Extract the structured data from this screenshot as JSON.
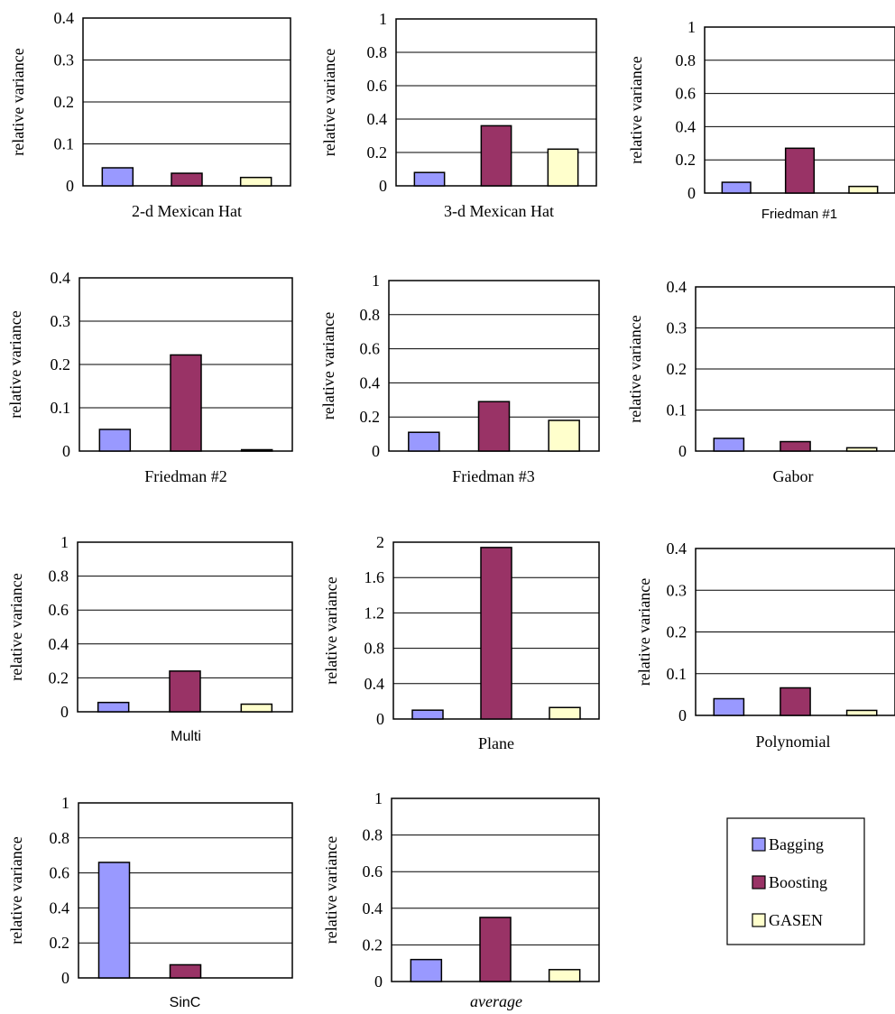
{
  "legend": {
    "items": [
      {
        "label": "Bagging",
        "color": "#9999ff"
      },
      {
        "label": "Boosting",
        "color": "#993366"
      },
      {
        "label": "GASEN",
        "color": "#ffffcc"
      }
    ]
  },
  "chart_data": [
    {
      "type": "bar",
      "title": "2-d Mexican Hat",
      "ylabel": "relative variance",
      "ylim": [
        0,
        0.4
      ],
      "yticks": [
        "0",
        "0.1",
        "0.2",
        "0.3",
        "0.4"
      ],
      "categories": [
        "Bagging",
        "Boosting",
        "GASEN"
      ],
      "values": [
        0.043,
        0.03,
        0.02
      ]
    },
    {
      "type": "bar",
      "title": "3-d Mexican Hat",
      "ylabel": "relative variance",
      "ylim": [
        0,
        1
      ],
      "yticks": [
        "0",
        "0.2",
        "0.4",
        "0.6",
        "0.8",
        "1"
      ],
      "categories": [
        "Bagging",
        "Boosting",
        "GASEN"
      ],
      "values": [
        0.08,
        0.36,
        0.22
      ]
    },
    {
      "type": "bar",
      "title": "Friedman #1",
      "ylabel": "relative variance",
      "ylim": [
        0,
        1
      ],
      "yticks": [
        "0",
        "0.2",
        "0.4",
        "0.6",
        "0.8",
        "1"
      ],
      "categories": [
        "Bagging",
        "Boosting",
        "GASEN"
      ],
      "values": [
        0.065,
        0.27,
        0.04
      ]
    },
    {
      "type": "bar",
      "title": "Friedman #2",
      "ylabel": "relative variance",
      "ylim": [
        0,
        0.4
      ],
      "yticks": [
        "0",
        "0.1",
        "0.2",
        "0.3",
        "0.4"
      ],
      "categories": [
        "Bagging",
        "Boosting",
        "GASEN"
      ],
      "values": [
        0.05,
        0.222,
        0.003
      ]
    },
    {
      "type": "bar",
      "title": "Friedman #3",
      "ylabel": "relative variance",
      "ylim": [
        0,
        1
      ],
      "yticks": [
        "0",
        "0.2",
        "0.4",
        "0.6",
        "0.8",
        "1"
      ],
      "categories": [
        "Bagging",
        "Boosting",
        "GASEN"
      ],
      "values": [
        0.11,
        0.29,
        0.18
      ]
    },
    {
      "type": "bar",
      "title": "Gabor",
      "ylabel": "relative variance",
      "ylim": [
        0,
        0.4
      ],
      "yticks": [
        "0",
        "0.1",
        "0.2",
        "0.3",
        "0.4"
      ],
      "categories": [
        "Bagging",
        "Boosting",
        "GASEN"
      ],
      "values": [
        0.031,
        0.023,
        0.008
      ]
    },
    {
      "type": "bar",
      "title": "Multi",
      "ylabel": "relative variance",
      "ylim": [
        0,
        1
      ],
      "yticks": [
        "0",
        "0.2",
        "0.4",
        "0.6",
        "0.8",
        "1"
      ],
      "categories": [
        "Bagging",
        "Boosting",
        "GASEN"
      ],
      "values": [
        0.055,
        0.24,
        0.045
      ]
    },
    {
      "type": "bar",
      "title": "Plane",
      "ylabel": "relative variance",
      "ylim": [
        0,
        2
      ],
      "yticks": [
        "0",
        "0.4",
        "0.8",
        "1.2",
        "1.6",
        "2"
      ],
      "categories": [
        "Bagging",
        "Boosting",
        "GASEN"
      ],
      "values": [
        0.1,
        1.94,
        0.13
      ]
    },
    {
      "type": "bar",
      "title": "Polynomial",
      "ylabel": "relative variance",
      "ylim": [
        0,
        0.4
      ],
      "yticks": [
        "0",
        "0.1",
        "0.2",
        "0.3",
        "0.4"
      ],
      "categories": [
        "Bagging",
        "Boosting",
        "GASEN"
      ],
      "values": [
        0.04,
        0.066,
        0.012
      ]
    },
    {
      "type": "bar",
      "title": "SinC",
      "ylabel": "relative variance",
      "ylim": [
        0,
        1
      ],
      "yticks": [
        "0",
        "0.2",
        "0.4",
        "0.6",
        "0.8",
        "1"
      ],
      "categories": [
        "Bagging",
        "Boosting",
        "GASEN"
      ],
      "values": [
        0.66,
        0.075,
        0.0
      ]
    },
    {
      "type": "bar",
      "title": "average",
      "ylabel": "relative variance",
      "ylim": [
        0,
        1
      ],
      "yticks": [
        "0",
        "0.2",
        "0.4",
        "0.6",
        "0.8",
        "1"
      ],
      "categories": [
        "Bagging",
        "Boosting",
        "GASEN"
      ],
      "values": [
        0.12,
        0.35,
        0.065
      ]
    }
  ]
}
